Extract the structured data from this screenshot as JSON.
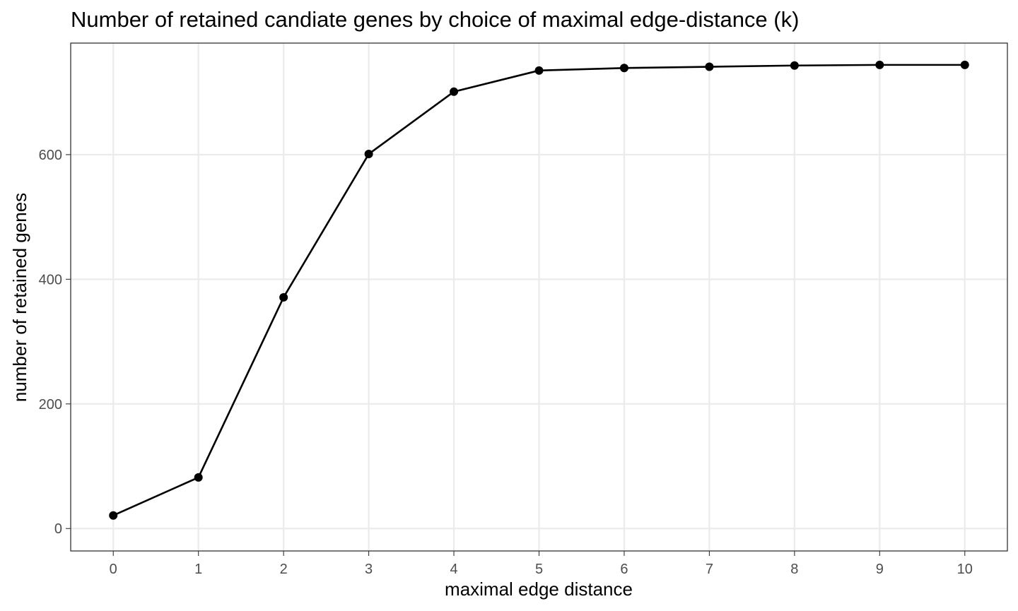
{
  "chart_data": {
    "type": "line",
    "title": "Number of retained candiate genes by choice of maximal edge-distance (k)",
    "xlabel": "maximal edge distance",
    "ylabel": "number of retained genes",
    "x": [
      0,
      1,
      2,
      3,
      4,
      5,
      6,
      7,
      8,
      9,
      10
    ],
    "series": [
      {
        "values": [
          21,
          82,
          371,
          601,
          701,
          735,
          739,
          741,
          743,
          744,
          744
        ]
      }
    ],
    "xlim": [
      -0.5,
      10.5
    ],
    "ylim": [
      -36,
      779
    ],
    "x_ticks": [
      0,
      1,
      2,
      3,
      4,
      5,
      6,
      7,
      8,
      9,
      10
    ],
    "x_tick_labels": [
      "0",
      "1",
      "2",
      "3",
      "4",
      "5",
      "6",
      "7",
      "8",
      "9",
      "10"
    ],
    "y_ticks": [
      0,
      200,
      400,
      600
    ],
    "y_tick_labels": [
      "0",
      "200",
      "400",
      "600"
    ],
    "grid": true,
    "legend": "none",
    "colors": {
      "line": "#000000",
      "points": "#000000",
      "grid": "#ebebeb",
      "border": "#333333",
      "tick_text": "#4d4d4d"
    }
  }
}
